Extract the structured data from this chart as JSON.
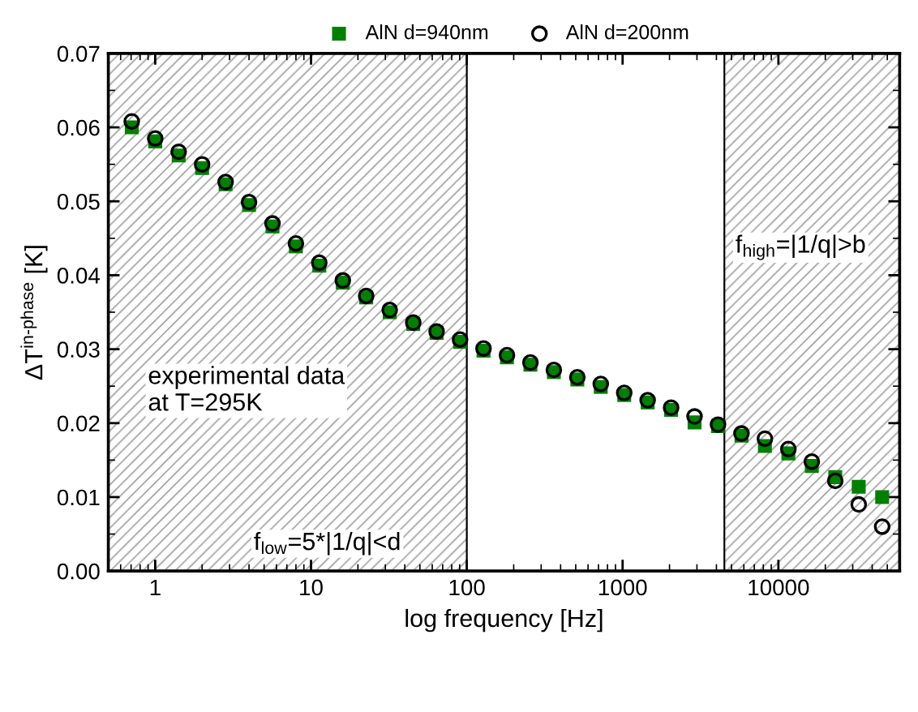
{
  "chart_data": {
    "type": "scatter",
    "xlabel": "log frequency [Hz]",
    "ylabel": "ΔT$^{in-phase}$ [K]",
    "x": [
      0.707,
      1,
      1.414,
      2,
      2.83,
      4,
      5.66,
      8,
      11.3,
      16,
      22.6,
      32,
      45.3,
      64,
      90.5,
      128,
      181,
      256,
      362,
      512,
      724,
      1024,
      1448,
      2048,
      2896,
      4096,
      5793,
      8192,
      11585,
      16384,
      23170,
      32768,
      46341
    ],
    "series": [
      {
        "name": "AlN d=940nm",
        "color": "#008000",
        "marker": "square",
        "values": [
          0.06,
          0.0581,
          0.0562,
          0.0545,
          0.0523,
          0.0495,
          0.0466,
          0.0439,
          0.0413,
          0.039,
          0.037,
          0.035,
          0.0334,
          0.0322,
          0.031,
          0.0298,
          0.0289,
          0.0279,
          0.0269,
          0.0259,
          0.0249,
          0.0238,
          0.0228,
          0.0218,
          0.0201,
          0.0196,
          0.0183,
          0.0169,
          0.0159,
          0.0142,
          0.0127,
          0.0114,
          0.01
        ]
      },
      {
        "name": "AlN d=200nm",
        "color": "#000000",
        "marker": "circle",
        "values": [
          0.0608,
          0.0585,
          0.0567,
          0.055,
          0.0526,
          0.0499,
          0.047,
          0.0443,
          0.0417,
          0.0393,
          0.0372,
          0.0353,
          0.0336,
          0.0324,
          0.0313,
          0.0301,
          0.0292,
          0.0282,
          0.0272,
          0.0262,
          0.0253,
          0.0241,
          0.0231,
          0.0221,
          0.0209,
          0.0198,
          0.0186,
          0.0179,
          0.0165,
          0.0148,
          0.0122,
          0.009,
          0.006
        ]
      }
    ],
    "log": "x",
    "xlim": [
      0.5,
      60000
    ],
    "xticks": [
      1,
      10,
      100,
      1000,
      10000
    ],
    "ylim": [
      0,
      0.07
    ],
    "yticks": [
      {
        "value": 0,
        "label": "0.00"
      },
      {
        "value": 0.01,
        "label": "0.01"
      },
      {
        "value": 0.02,
        "label": "0.02"
      },
      {
        "value": 0.03,
        "label": "0.03"
      },
      {
        "value": 0.04,
        "label": "0.04"
      },
      {
        "value": 0.05,
        "label": "0.05"
      },
      {
        "value": 0.06,
        "label": "0.06"
      },
      {
        "value": 0.07,
        "label": "0.07"
      }
    ],
    "bands": [
      {
        "axis": "x",
        "from": 0.5,
        "to": 100,
        "color": "#a0a0a0"
      },
      {
        "axis": "x",
        "from": 4500,
        "to": 60000,
        "color": "#a0a0a0"
      }
    ],
    "annotations": [
      "experimental data\nat T=295K",
      "f$_{low}$=5*|1/q|<d",
      "f$_{high}$=|1/q|>b"
    ],
    "grid": false,
    "legend": "top"
  }
}
